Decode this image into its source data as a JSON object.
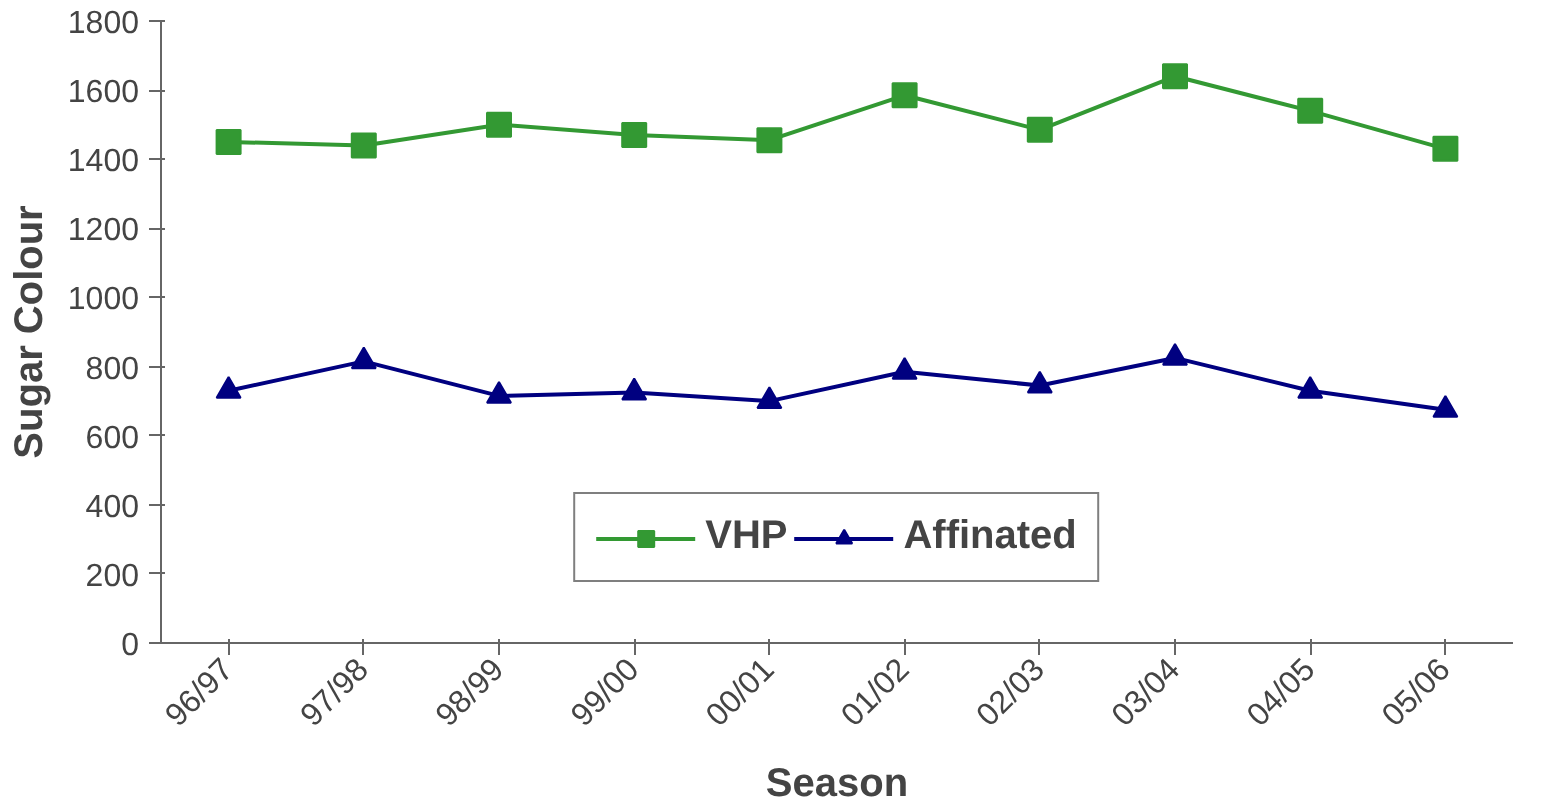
{
  "chart_data": {
    "type": "line",
    "xlabel": "Season",
    "ylabel": "Sugar Colour",
    "categories": [
      "96/97",
      "97/98",
      "98/99",
      "99/00",
      "00/01",
      "01/02",
      "02/03",
      "03/04",
      "04/05",
      "05/06"
    ],
    "series": [
      {
        "name": "VHP",
        "color": "#339933",
        "marker": "square",
        "values": [
          1450,
          1440,
          1500,
          1470,
          1455,
          1585,
          1485,
          1640,
          1540,
          1430
        ]
      },
      {
        "name": "Affinated",
        "color": "#000080",
        "marker": "triangle",
        "values": [
          730,
          815,
          715,
          725,
          700,
          785,
          745,
          825,
          730,
          675
        ]
      }
    ],
    "ylim": [
      0,
      1800
    ],
    "yticks": [
      0,
      200,
      400,
      600,
      800,
      1000,
      1200,
      1400,
      1600,
      1800
    ],
    "grid": false,
    "legend": "bottom",
    "line_style": "solid"
  }
}
